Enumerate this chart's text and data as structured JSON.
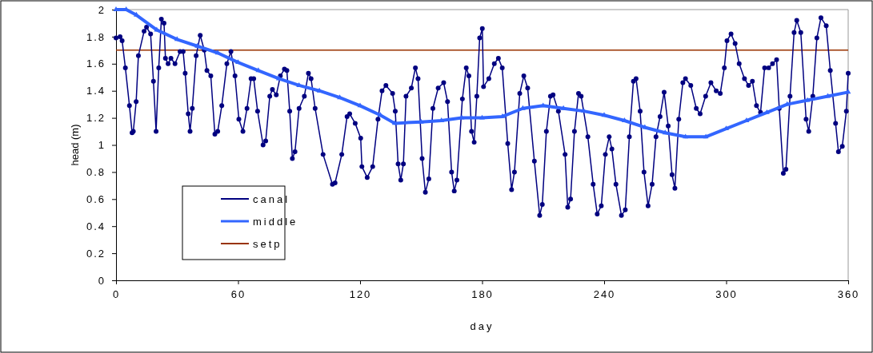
{
  "chart_data": {
    "type": "line",
    "xlabel": "day",
    "ylabel": "head (m)",
    "xlim": [
      0,
      360
    ],
    "xticks": [
      0,
      60,
      120,
      180,
      240,
      300,
      360
    ],
    "ylim": [
      0,
      2
    ],
    "yticks": [
      0,
      0.2,
      0.4,
      0.6,
      0.8,
      1,
      1.2,
      1.4,
      1.6,
      1.8,
      2
    ],
    "grid": false,
    "legend": "bottom left",
    "line_style": "solid",
    "series": [
      {
        "name": "canal",
        "color": "#000080",
        "marker": "circle",
        "x": [
          0,
          2,
          3,
          4.6,
          6.6,
          7.9,
          8.5,
          9.9,
          11,
          13.8,
          15,
          17,
          18.4,
          19.7,
          21,
          22.3,
          23.6,
          24.3,
          25.6,
          27,
          29,
          31.5,
          33,
          34,
          35.5,
          36.4,
          37.5,
          39.4,
          41.4,
          43.4,
          44.7,
          46.6,
          48.6,
          50,
          52,
          54.5,
          56.5,
          58.5,
          60.4,
          62.4,
          64.4,
          66.4,
          67.7,
          69.6,
          72.3,
          73.6,
          75.6,
          76.9,
          78.8,
          80.8,
          82.8,
          84,
          85.4,
          86.7,
          88,
          90,
          92.6,
          94.6,
          95.9,
          97.9,
          101.8,
          106.4,
          107.7,
          111,
          113.6,
          114.9,
          117.6,
          120.3,
          120.9,
          123.5,
          126.2,
          128.8,
          130.8,
          132.7,
          136,
          137.3,
          138.7,
          140,
          141.3,
          142.6,
          145.2,
          147.2,
          148.5,
          150.5,
          152.1,
          153.8,
          155.8,
          158.4,
          161.1,
          163,
          165,
          166.3,
          167.6,
          170.3,
          172.2,
          173.5,
          174.8,
          176.1,
          177.4,
          178.8,
          180.1,
          180.7,
          183.3,
          186,
          188,
          189.9,
          192.6,
          194.5,
          195.9,
          198.5,
          200.5,
          202.4,
          205.7,
          208.3,
          209.6,
          211.6,
          213.6,
          214.9,
          217.5,
          220.8,
          222.1,
          223.5,
          225.4,
          227.4,
          228.7,
          232,
          234.6,
          236.6,
          238.6,
          240.6,
          242.5,
          243.8,
          245.8,
          248.5,
          250.4,
          252.4,
          254.4,
          255.7,
          257.7,
          259.6,
          261.6,
          263.6,
          265.5,
          267.5,
          269.5,
          271.5,
          273.4,
          274.8,
          276.7,
          278.7,
          280,
          282.6,
          285.3,
          287.2,
          289.9,
          292.5,
          295.1,
          297.1,
          299.1,
          300.4,
          302.4,
          304.4,
          306.4,
          309,
          311,
          312.9,
          314.9,
          316.9,
          318.9,
          320.9,
          322.8,
          324.8,
          326.1,
          328.1,
          329.4,
          331.4,
          333.4,
          334.7,
          336.7,
          339.3,
          340.6,
          342.6,
          344.6,
          346.6,
          349.2,
          351.2,
          353.8,
          355.2,
          357.1,
          359.1,
          360
        ],
        "values": [
          1.79,
          1.8,
          1.77,
          1.57,
          1.29,
          1.09,
          1.1,
          1.32,
          1.66,
          1.84,
          1.87,
          1.82,
          1.47,
          1.1,
          1.57,
          1.93,
          1.9,
          1.64,
          1.6,
          1.64,
          1.6,
          1.69,
          1.69,
          1.53,
          1.23,
          1.1,
          1.27,
          1.66,
          1.81,
          1.7,
          1.55,
          1.51,
          1.08,
          1.1,
          1.29,
          1.6,
          1.69,
          1.51,
          1.19,
          1.1,
          1.27,
          1.49,
          1.49,
          1.25,
          1,
          1.03,
          1.36,
          1.41,
          1.37,
          1.51,
          1.56,
          1.55,
          1.25,
          0.9,
          0.95,
          1.27,
          1.36,
          1.53,
          1.49,
          1.27,
          0.93,
          0.71,
          0.72,
          0.93,
          1.21,
          1.23,
          1.16,
          1.05,
          0.84,
          0.76,
          0.84,
          1.19,
          1.4,
          1.44,
          1.38,
          1.25,
          0.86,
          0.74,
          0.86,
          1.36,
          1.42,
          1.57,
          1.49,
          0.9,
          0.65,
          0.75,
          1.27,
          1.42,
          1.46,
          1.32,
          0.8,
          0.66,
          0.74,
          1.34,
          1.57,
          1.51,
          1.1,
          1.02,
          1.36,
          1.79,
          1.86,
          1.43,
          1.49,
          1.6,
          1.64,
          1.57,
          1.01,
          0.67,
          0.8,
          1.38,
          1.51,
          1.42,
          0.88,
          0.48,
          0.56,
          1.1,
          1.36,
          1.37,
          1.25,
          0.93,
          0.54,
          0.6,
          1.1,
          1.38,
          1.36,
          1.06,
          0.71,
          0.49,
          0.55,
          0.93,
          1.06,
          0.97,
          0.71,
          0.48,
          0.52,
          1.06,
          1.47,
          1.49,
          1.25,
          0.8,
          0.55,
          0.71,
          1.06,
          1.21,
          1.39,
          1.14,
          0.78,
          0.68,
          1.19,
          1.46,
          1.49,
          1.44,
          1.27,
          1.23,
          1.36,
          1.46,
          1.4,
          1.38,
          1.57,
          1.77,
          1.82,
          1.75,
          1.6,
          1.49,
          1.44,
          1.47,
          1.29,
          1.24,
          1.57,
          1.57,
          1.6,
          1.63,
          1.27,
          0.79,
          0.82,
          1.36,
          1.83,
          1.92,
          1.83,
          1.19,
          1.1,
          1.36,
          1.79,
          1.94,
          1.88,
          1.55,
          1.16,
          0.95,
          0.99,
          1.25,
          1.53
        ]
      },
      {
        "name": "middle",
        "color": "#3366ff",
        "marker": "triangle",
        "x": [
          0,
          5,
          10,
          20,
          30,
          40,
          50,
          60,
          70,
          80,
          90,
          100,
          110,
          120,
          130,
          137,
          150,
          160,
          170,
          180,
          190,
          200,
          210,
          220,
          230,
          240,
          250,
          260,
          270,
          280,
          290,
          300,
          310,
          320,
          330,
          340,
          350,
          360
        ],
        "values": [
          2,
          2,
          1.96,
          1.85,
          1.78,
          1.73,
          1.68,
          1.61,
          1.55,
          1.49,
          1.44,
          1.4,
          1.35,
          1.29,
          1.22,
          1.16,
          1.17,
          1.18,
          1.2,
          1.2,
          1.21,
          1.27,
          1.29,
          1.27,
          1.25,
          1.22,
          1.18,
          1.13,
          1.09,
          1.06,
          1.06,
          1.12,
          1.18,
          1.24,
          1.3,
          1.33,
          1.36,
          1.39
        ]
      },
      {
        "name": "setp",
        "color": "#993300",
        "marker": "none",
        "x": [
          0,
          360
        ],
        "values": [
          1.7,
          1.7
        ]
      }
    ]
  }
}
